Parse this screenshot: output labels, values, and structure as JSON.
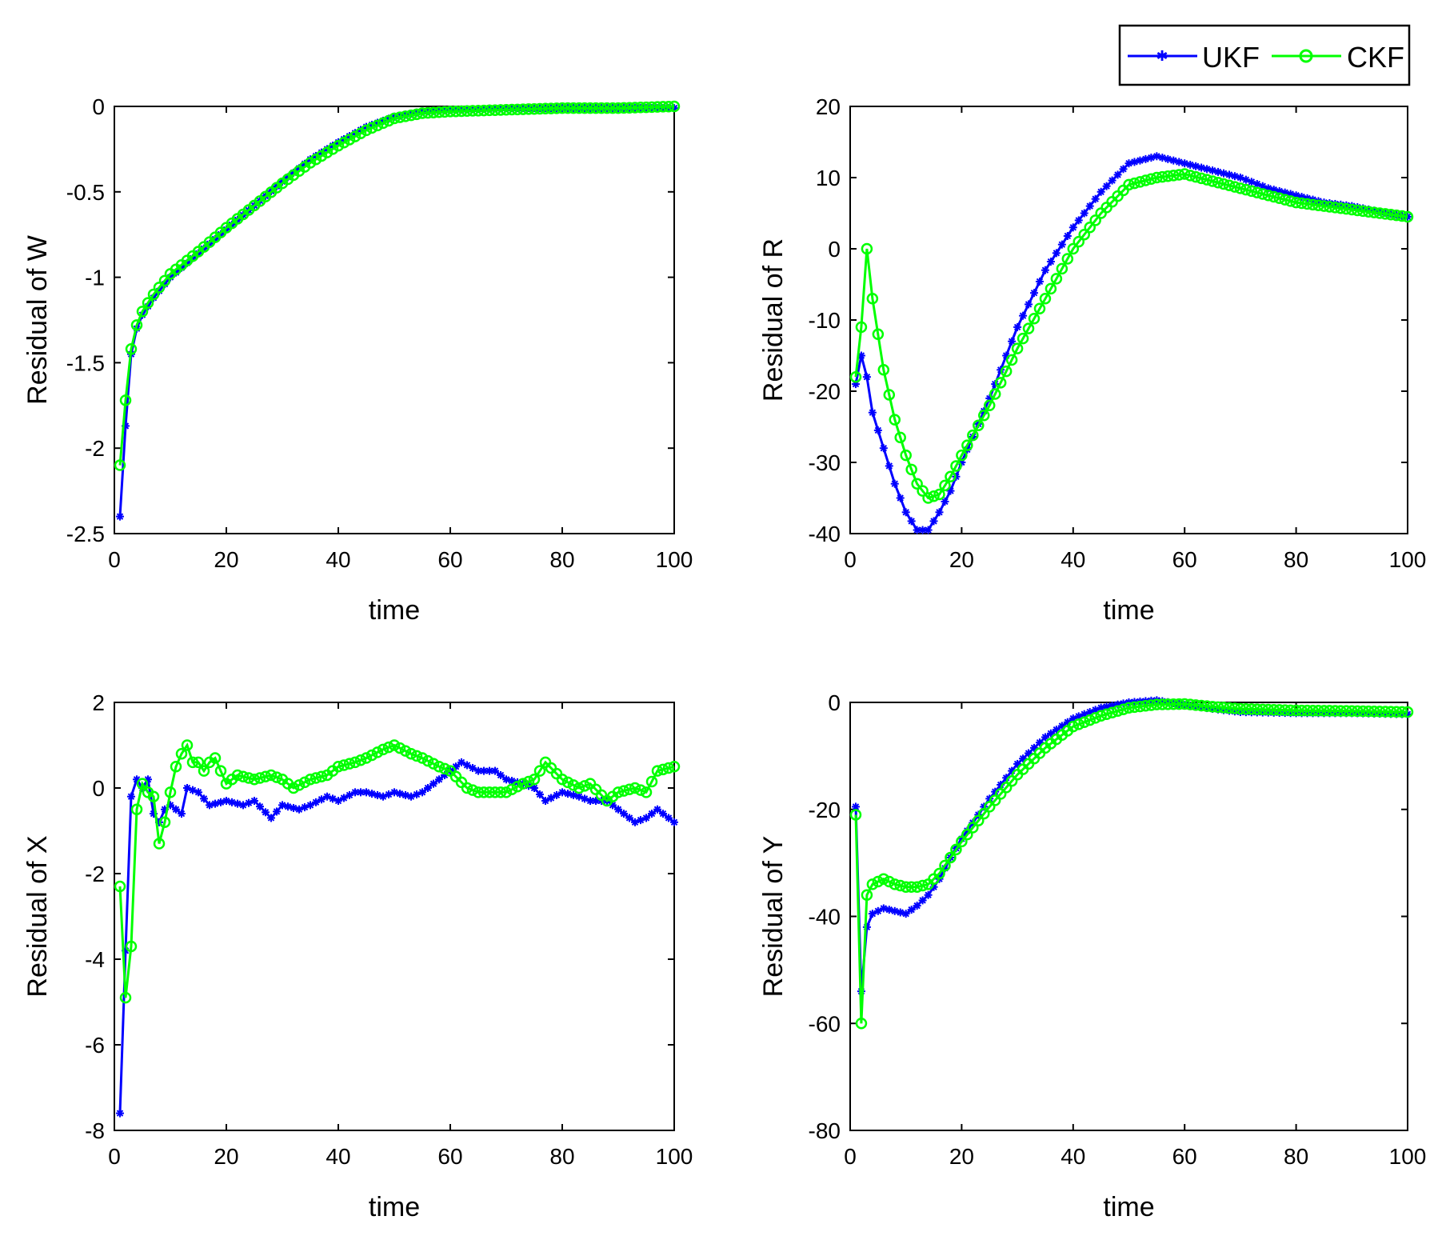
{
  "legend": {
    "entries": [
      {
        "name": "UKF",
        "color": "#0000ff",
        "marker": "asterisk"
      },
      {
        "name": "CKF",
        "color": "#00ff00",
        "marker": "circle"
      }
    ]
  },
  "chart_data": [
    {
      "type": "line",
      "id": "W",
      "xlabel": "time",
      "ylabel": "Residual of W",
      "xlim": [
        0,
        100
      ],
      "ylim": [
        -2.5,
        0
      ],
      "xticks": [
        0,
        20,
        40,
        60,
        80,
        100
      ],
      "xtick_labels": [
        "0",
        "20",
        "40",
        "60",
        "80",
        "100"
      ],
      "yticks": [
        0,
        -0.5,
        -1,
        -1.5,
        -2,
        -2.5
      ],
      "ytick_labels": [
        "0",
        "-0.5",
        "-1",
        "-1.5",
        "-2",
        "-2.5"
      ],
      "series": [
        {
          "name": "UKF",
          "points": [
            [
              1,
              -2.4
            ],
            [
              2,
              -1.87
            ],
            [
              3,
              -1.45
            ],
            [
              4,
              -1.3
            ],
            [
              5,
              -1.22
            ],
            [
              7,
              -1.12
            ],
            [
              10,
              -1.0
            ],
            [
              15,
              -0.86
            ],
            [
              20,
              -0.72
            ],
            [
              25,
              -0.58
            ],
            [
              30,
              -0.44
            ],
            [
              35,
              -0.31
            ],
            [
              40,
              -0.21
            ],
            [
              45,
              -0.12
            ],
            [
              50,
              -0.06
            ],
            [
              55,
              -0.03
            ],
            [
              60,
              -0.02
            ],
            [
              70,
              -0.01
            ],
            [
              80,
              -0.01
            ],
            [
              90,
              -0.01
            ],
            [
              100,
              -0.01
            ]
          ]
        },
        {
          "name": "CKF",
          "points": [
            [
              1,
              -2.1
            ],
            [
              2,
              -1.72
            ],
            [
              3,
              -1.42
            ],
            [
              4,
              -1.28
            ],
            [
              5,
              -1.2
            ],
            [
              7,
              -1.1
            ],
            [
              10,
              -0.98
            ],
            [
              15,
              -0.85
            ],
            [
              20,
              -0.71
            ],
            [
              25,
              -0.58
            ],
            [
              30,
              -0.45
            ],
            [
              35,
              -0.33
            ],
            [
              40,
              -0.23
            ],
            [
              45,
              -0.14
            ],
            [
              50,
              -0.07
            ],
            [
              55,
              -0.04
            ],
            [
              60,
              -0.03
            ],
            [
              70,
              -0.02
            ],
            [
              80,
              -0.01
            ],
            [
              90,
              -0.01
            ],
            [
              100,
              0.0
            ]
          ]
        }
      ]
    },
    {
      "type": "line",
      "id": "R",
      "xlabel": "time",
      "ylabel": "Residual of R",
      "xlim": [
        0,
        100
      ],
      "ylim": [
        -40,
        20
      ],
      "xticks": [
        0,
        20,
        40,
        60,
        80,
        100
      ],
      "xtick_labels": [
        "0",
        "20",
        "40",
        "60",
        "80",
        "100"
      ],
      "yticks": [
        20,
        10,
        0,
        -10,
        -20,
        -30,
        -40
      ],
      "ytick_labels": [
        "20",
        "10",
        "0",
        "-10",
        "-20",
        "-30",
        "-40"
      ],
      "series": [
        {
          "name": "UKF",
          "points": [
            [
              1,
              -19
            ],
            [
              2,
              -15
            ],
            [
              3,
              -18
            ],
            [
              4,
              -23
            ],
            [
              6,
              -28
            ],
            [
              8,
              -33
            ],
            [
              10,
              -37
            ],
            [
              12,
              -39.5
            ],
            [
              14,
              -39.5
            ],
            [
              16,
              -37
            ],
            [
              18,
              -34
            ],
            [
              20,
              -30
            ],
            [
              25,
              -21
            ],
            [
              30,
              -11
            ],
            [
              35,
              -3
            ],
            [
              40,
              3
            ],
            [
              45,
              8
            ],
            [
              50,
              12
            ],
            [
              55,
              13
            ],
            [
              60,
              12
            ],
            [
              65,
              11
            ],
            [
              70,
              10
            ],
            [
              75,
              8.5
            ],
            [
              80,
              7.5
            ],
            [
              85,
              6.5
            ],
            [
              90,
              6
            ],
            [
              95,
              5.2
            ],
            [
              100,
              4.5
            ]
          ]
        },
        {
          "name": "CKF",
          "points": [
            [
              1,
              -18
            ],
            [
              2,
              -11
            ],
            [
              3,
              0
            ],
            [
              4,
              -7
            ],
            [
              5,
              -12
            ],
            [
              6,
              -17
            ],
            [
              8,
              -24
            ],
            [
              10,
              -29
            ],
            [
              12,
              -33
            ],
            [
              14,
              -35
            ],
            [
              16,
              -34.5
            ],
            [
              18,
              -32
            ],
            [
              20,
              -29
            ],
            [
              25,
              -22
            ],
            [
              30,
              -14
            ],
            [
              35,
              -7
            ],
            [
              40,
              0
            ],
            [
              45,
              5
            ],
            [
              50,
              9
            ],
            [
              55,
              10
            ],
            [
              60,
              10.5
            ],
            [
              65,
              9.5
            ],
            [
              70,
              8.5
            ],
            [
              75,
              7.5
            ],
            [
              80,
              6.5
            ],
            [
              85,
              6
            ],
            [
              90,
              5.5
            ],
            [
              95,
              5
            ],
            [
              100,
              4.5
            ]
          ]
        }
      ]
    },
    {
      "type": "line",
      "id": "X",
      "xlabel": "time",
      "ylabel": "Residual of X",
      "xlim": [
        0,
        100
      ],
      "ylim": [
        -8,
        2
      ],
      "xticks": [
        0,
        20,
        40,
        60,
        80,
        100
      ],
      "xtick_labels": [
        "0",
        "20",
        "40",
        "60",
        "80",
        "100"
      ],
      "yticks": [
        2,
        0,
        -2,
        -4,
        -6,
        -8
      ],
      "ytick_labels": [
        "2",
        "0",
        "-2",
        "-4",
        "-6",
        "-8"
      ],
      "series": [
        {
          "name": "UKF",
          "points": [
            [
              1,
              -7.6
            ],
            [
              2,
              -3.8
            ],
            [
              3,
              -0.2
            ],
            [
              4,
              0.2
            ],
            [
              5,
              0.0
            ],
            [
              6,
              0.2
            ],
            [
              7,
              -0.6
            ],
            [
              8,
              -0.8
            ],
            [
              9,
              -0.5
            ],
            [
              10,
              -0.4
            ],
            [
              12,
              -0.6
            ],
            [
              13,
              0.0
            ],
            [
              15,
              -0.1
            ],
            [
              17,
              -0.4
            ],
            [
              20,
              -0.3
            ],
            [
              23,
              -0.4
            ],
            [
              25,
              -0.3
            ],
            [
              28,
              -0.7
            ],
            [
              30,
              -0.4
            ],
            [
              33,
              -0.5
            ],
            [
              35,
              -0.4
            ],
            [
              38,
              -0.2
            ],
            [
              40,
              -0.3
            ],
            [
              43,
              -0.1
            ],
            [
              45,
              -0.1
            ],
            [
              48,
              -0.2
            ],
            [
              50,
              -0.1
            ],
            [
              53,
              -0.2
            ],
            [
              55,
              -0.1
            ],
            [
              58,
              0.2
            ],
            [
              60,
              0.4
            ],
            [
              62,
              0.6
            ],
            [
              65,
              0.4
            ],
            [
              68,
              0.4
            ],
            [
              70,
              0.2
            ],
            [
              73,
              0.1
            ],
            [
              75,
              0.0
            ],
            [
              77,
              -0.3
            ],
            [
              80,
              -0.1
            ],
            [
              83,
              -0.2
            ],
            [
              85,
              -0.3
            ],
            [
              88,
              -0.3
            ],
            [
              90,
              -0.5
            ],
            [
              93,
              -0.8
            ],
            [
              95,
              -0.7
            ],
            [
              97,
              -0.5
            ],
            [
              100,
              -0.8
            ]
          ]
        },
        {
          "name": "CKF",
          "points": [
            [
              1,
              -2.3
            ],
            [
              2,
              -4.9
            ],
            [
              3,
              -3.7
            ],
            [
              4,
              -0.5
            ],
            [
              5,
              0.1
            ],
            [
              6,
              -0.1
            ],
            [
              7,
              -0.2
            ],
            [
              8,
              -1.3
            ],
            [
              9,
              -0.8
            ],
            [
              10,
              -0.1
            ],
            [
              11,
              0.5
            ],
            [
              12,
              0.8
            ],
            [
              13,
              1.0
            ],
            [
              14,
              0.6
            ],
            [
              15,
              0.6
            ],
            [
              16,
              0.4
            ],
            [
              17,
              0.6
            ],
            [
              18,
              0.7
            ],
            [
              20,
              0.1
            ],
            [
              22,
              0.3
            ],
            [
              25,
              0.2
            ],
            [
              28,
              0.3
            ],
            [
              30,
              0.2
            ],
            [
              32,
              0.0
            ],
            [
              35,
              0.2
            ],
            [
              38,
              0.3
            ],
            [
              40,
              0.5
            ],
            [
              43,
              0.6
            ],
            [
              45,
              0.7
            ],
            [
              48,
              0.9
            ],
            [
              50,
              1.0
            ],
            [
              53,
              0.8
            ],
            [
              55,
              0.7
            ],
            [
              58,
              0.5
            ],
            [
              60,
              0.4
            ],
            [
              63,
              0.0
            ],
            [
              65,
              -0.1
            ],
            [
              68,
              -0.1
            ],
            [
              70,
              -0.1
            ],
            [
              73,
              0.1
            ],
            [
              75,
              0.2
            ],
            [
              77,
              0.6
            ],
            [
              80,
              0.2
            ],
            [
              83,
              0.0
            ],
            [
              85,
              0.1
            ],
            [
              88,
              -0.3
            ],
            [
              90,
              -0.1
            ],
            [
              93,
              0.0
            ],
            [
              95,
              -0.1
            ],
            [
              97,
              0.4
            ],
            [
              100,
              0.5
            ]
          ]
        }
      ]
    },
    {
      "type": "line",
      "id": "Y",
      "xlabel": "time",
      "ylabel": "Residual of Y",
      "xlim": [
        0,
        100
      ],
      "ylim": [
        -80,
        0
      ],
      "xticks": [
        0,
        20,
        40,
        60,
        80,
        100
      ],
      "xtick_labels": [
        "0",
        "20",
        "40",
        "60",
        "80",
        "100"
      ],
      "yticks": [
        0,
        -20,
        -40,
        -60,
        -80
      ],
      "ytick_labels": [
        "0",
        "-20",
        "-40",
        "-60",
        "-80"
      ],
      "series": [
        {
          "name": "UKF",
          "points": [
            [
              1,
              -19.5
            ],
            [
              2,
              -54
            ],
            [
              3,
              -42
            ],
            [
              4,
              -39.5
            ],
            [
              6,
              -38.5
            ],
            [
              8,
              -39
            ],
            [
              10,
              -39.5
            ],
            [
              12,
              -38
            ],
            [
              14,
              -36
            ],
            [
              16,
              -33
            ],
            [
              18,
              -29
            ],
            [
              20,
              -25.5
            ],
            [
              25,
              -18
            ],
            [
              30,
              -11.5
            ],
            [
              35,
              -6.5
            ],
            [
              40,
              -3
            ],
            [
              45,
              -1
            ],
            [
              50,
              0
            ],
            [
              55,
              0.4
            ],
            [
              60,
              -0.5
            ],
            [
              65,
              -1.2
            ],
            [
              70,
              -1.8
            ],
            [
              80,
              -2
            ],
            [
              90,
              -2
            ],
            [
              100,
              -2.2
            ]
          ]
        },
        {
          "name": "CKF",
          "points": [
            [
              1,
              -21
            ],
            [
              2,
              -60
            ],
            [
              3,
              -36
            ],
            [
              4,
              -34
            ],
            [
              6,
              -33
            ],
            [
              8,
              -34
            ],
            [
              10,
              -34.5
            ],
            [
              12,
              -34.5
            ],
            [
              14,
              -34
            ],
            [
              16,
              -32
            ],
            [
              18,
              -29
            ],
            [
              20,
              -26
            ],
            [
              25,
              -19.5
            ],
            [
              30,
              -13.5
            ],
            [
              35,
              -8.5
            ],
            [
              40,
              -4.5
            ],
            [
              45,
              -2.5
            ],
            [
              50,
              -1
            ],
            [
              55,
              -0.4
            ],
            [
              60,
              -0.3
            ],
            [
              65,
              -0.8
            ],
            [
              70,
              -1.2
            ],
            [
              80,
              -1.5
            ],
            [
              90,
              -1.6
            ],
            [
              100,
              -1.8
            ]
          ]
        }
      ]
    }
  ]
}
